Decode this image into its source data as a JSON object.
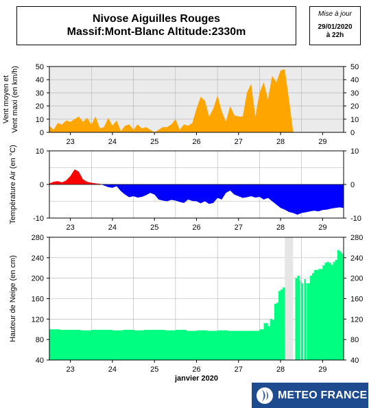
{
  "header": {
    "title_line1": "Nivose Aiguilles Rouges",
    "title_line2": "Massif:Mont-Blanc Altitude:2330m",
    "update_label": "Mise à jour",
    "update_date": "29/01/2020",
    "update_time": "à 22h"
  },
  "logo": {
    "text": "METEO FRANCE"
  },
  "chart_data": [
    {
      "type": "area",
      "ylabel": "Vent moyen et Vent maxi (en km/h)",
      "ylim": [
        0,
        50
      ],
      "yticks": [
        0,
        10,
        20,
        30,
        40,
        50
      ],
      "xlim": [
        22.5,
        29.5
      ],
      "xticks": [
        "23",
        "24",
        "25",
        "26",
        "27",
        "28",
        "29"
      ],
      "fill_color": "#ffa500",
      "background": "#ebebeb",
      "x": [
        22.5,
        22.6,
        22.7,
        22.8,
        22.9,
        23.0,
        23.1,
        23.2,
        23.3,
        23.4,
        23.5,
        23.6,
        23.7,
        23.8,
        23.9,
        24.0,
        24.1,
        24.2,
        24.3,
        24.4,
        24.5,
        24.6,
        24.7,
        24.8,
        24.9,
        25.0,
        25.1,
        25.2,
        25.3,
        25.4,
        25.5,
        25.6,
        25.7,
        25.8,
        25.9,
        26.0,
        26.1,
        26.2,
        26.3,
        26.4,
        26.5,
        26.6,
        26.7,
        26.8,
        26.9,
        27.0,
        27.1,
        27.2,
        27.3,
        27.4,
        27.5,
        27.6,
        27.7,
        27.8,
        27.9,
        28.0,
        28.1,
        28.2,
        28.3
      ],
      "values": [
        5,
        2,
        7,
        6,
        9,
        8,
        10,
        12,
        8,
        11,
        6,
        12,
        3,
        4,
        11,
        5,
        9,
        1,
        5,
        6,
        2,
        6,
        3,
        4,
        2,
        0,
        2,
        4,
        4,
        6,
        10,
        2,
        6,
        5,
        7,
        18,
        27,
        24,
        12,
        18,
        28,
        16,
        8,
        20,
        13,
        12,
        12,
        30,
        37,
        12,
        30,
        38,
        25,
        43,
        38,
        47,
        48,
        25,
        0
      ]
    },
    {
      "type": "area",
      "ylabel": "Température Air (en °C)",
      "ylim": [
        -10,
        10
      ],
      "yticks": [
        -10,
        0,
        10
      ],
      "xlim": [
        22.5,
        29.5
      ],
      "xticks": [
        "23",
        "24",
        "25",
        "26",
        "27",
        "28",
        "29"
      ],
      "positive_color": "#ff0000",
      "negative_color": "#0000ff",
      "x": [
        22.5,
        22.6,
        22.7,
        22.8,
        22.9,
        23.0,
        23.1,
        23.2,
        23.3,
        23.4,
        23.5,
        23.6,
        23.7,
        23.8,
        23.9,
        24.0,
        24.1,
        24.2,
        24.3,
        24.4,
        24.5,
        24.6,
        24.7,
        24.8,
        24.9,
        25.0,
        25.1,
        25.2,
        25.3,
        25.4,
        25.5,
        25.6,
        25.7,
        25.8,
        25.9,
        26.0,
        26.1,
        26.2,
        26.3,
        26.4,
        26.5,
        26.6,
        26.7,
        26.8,
        26.9,
        27.0,
        27.1,
        27.2,
        27.3,
        27.4,
        27.5,
        27.6,
        27.7,
        27.8,
        27.9,
        28.0,
        28.1,
        28.2,
        28.3,
        28.4,
        28.5,
        28.6,
        28.7,
        28.8,
        28.9,
        29.0,
        29.1,
        29.2,
        29.3,
        29.4,
        29.5
      ],
      "values": [
        0.3,
        0.8,
        1.0,
        0.6,
        1.2,
        2.5,
        4.5,
        3.8,
        1.5,
        0.8,
        0.5,
        0.3,
        0.2,
        -0.3,
        -0.8,
        -1.0,
        -0.5,
        -2.0,
        -3.0,
        -3.8,
        -3.5,
        -3.9,
        -3.7,
        -3.2,
        -2.5,
        -3.0,
        -4.5,
        -4.8,
        -5.0,
        -4.6,
        -4.8,
        -5.2,
        -5.5,
        -4.5,
        -4.9,
        -5.0,
        -5.6,
        -5.0,
        -5.8,
        -5.5,
        -4.0,
        -4.5,
        -2.5,
        -1.8,
        -3.0,
        -3.5,
        -4.0,
        -3.8,
        -3.5,
        -3.9,
        -3.7,
        -4.5,
        -4.0,
        -5.0,
        -6.0,
        -7.0,
        -7.5,
        -8.2,
        -8.5,
        -9.0,
        -8.5,
        -8.3,
        -8.0,
        -7.8,
        -8.0,
        -7.6,
        -7.5,
        -7.2,
        -7.0,
        -6.8,
        -7.0
      ]
    },
    {
      "type": "bar",
      "xlabel": "janvier 2020",
      "ylabel": "Hauteur de Neige (en cm)",
      "ylim": [
        40,
        280
      ],
      "yticks": [
        40,
        80,
        120,
        160,
        200,
        240,
        280
      ],
      "xlim": [
        22.5,
        29.5
      ],
      "xticks": [
        "23",
        "24",
        "25",
        "26",
        "27",
        "28",
        "29"
      ],
      "fill_color": "#00ff80",
      "missing_color": "#e6e6e6",
      "missing_ranges": [
        [
          28.1,
          28.3
        ]
      ],
      "x": [
        22.5,
        22.75,
        23.0,
        23.25,
        23.5,
        23.75,
        24.0,
        24.25,
        24.5,
        24.75,
        25.0,
        25.25,
        25.5,
        25.75,
        26.0,
        26.25,
        26.5,
        26.75,
        27.0,
        27.2,
        27.4,
        27.5,
        27.6,
        27.7,
        27.75,
        27.8,
        27.85,
        27.9,
        27.95,
        28.0,
        28.05,
        28.1,
        28.35,
        28.4,
        28.45,
        28.5,
        28.55,
        28.6,
        28.7,
        28.75,
        28.8,
        28.9,
        29.0,
        29.05,
        29.1,
        29.15,
        29.2,
        29.25,
        29.3,
        29.35,
        29.4,
        29.45
      ],
      "values": [
        100,
        99,
        99,
        98,
        99,
        99,
        98,
        99,
        98,
        99,
        99,
        98,
        99,
        97,
        98,
        97,
        98,
        97,
        97,
        97,
        97,
        100,
        112,
        106,
        120,
        118,
        150,
        152,
        175,
        178,
        182,
        null,
        200,
        205,
        195,
        190,
        198,
        190,
        205,
        210,
        216,
        218,
        225,
        230,
        232,
        230,
        226,
        232,
        236,
        255,
        252,
        248
      ]
    }
  ]
}
